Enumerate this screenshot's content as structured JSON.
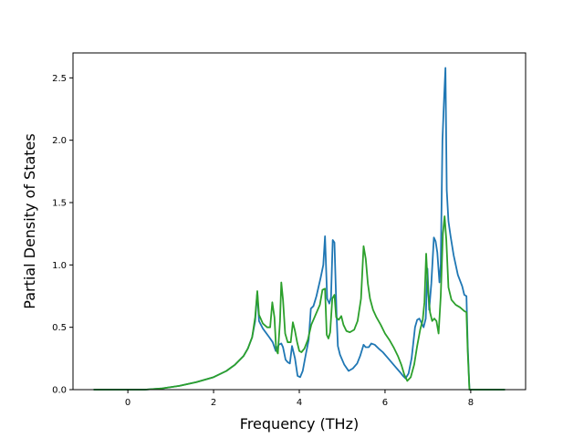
{
  "chart_data": {
    "type": "line",
    "xlabel": "Frequency (THz)",
    "ylabel": "Partial Density of States",
    "xlim": [
      -1.28,
      9.28
    ],
    "ylim": [
      0,
      2.7
    ],
    "xticks": [
      0,
      2,
      4,
      6,
      8
    ],
    "yticks": [
      0.0,
      0.5,
      1.0,
      1.5,
      2.0,
      2.5
    ],
    "xtick_labels": [
      "0",
      "2",
      "4",
      "6",
      "8"
    ],
    "ytick_labels": [
      "0.0",
      "0.5",
      "1.0",
      "1.5",
      "2.0",
      "2.5"
    ],
    "grid": false,
    "legend": "none",
    "series": [
      {
        "color": "#1f77b4",
        "points": [
          [
            -0.8,
            0
          ],
          [
            0.0,
            0
          ],
          [
            0.4,
            0.0
          ],
          [
            0.8,
            0.01
          ],
          [
            1.2,
            0.03
          ],
          [
            1.6,
            0.06
          ],
          [
            2.0,
            0.1
          ],
          [
            2.3,
            0.15
          ],
          [
            2.5,
            0.2
          ],
          [
            2.7,
            0.27
          ],
          [
            2.8,
            0.33
          ],
          [
            2.9,
            0.42
          ],
          [
            2.97,
            0.55
          ],
          [
            3.02,
            0.78
          ],
          [
            3.06,
            0.55
          ],
          [
            3.15,
            0.49
          ],
          [
            3.3,
            0.42
          ],
          [
            3.38,
            0.38
          ],
          [
            3.45,
            0.31
          ],
          [
            3.52,
            0.36
          ],
          [
            3.58,
            0.37
          ],
          [
            3.62,
            0.34
          ],
          [
            3.68,
            0.24
          ],
          [
            3.73,
            0.22
          ],
          [
            3.78,
            0.21
          ],
          [
            3.83,
            0.35
          ],
          [
            3.9,
            0.25
          ],
          [
            3.96,
            0.11
          ],
          [
            4.02,
            0.1
          ],
          [
            4.08,
            0.15
          ],
          [
            4.15,
            0.28
          ],
          [
            4.22,
            0.4
          ],
          [
            4.27,
            0.65
          ],
          [
            4.33,
            0.67
          ],
          [
            4.4,
            0.75
          ],
          [
            4.5,
            0.9
          ],
          [
            4.56,
            1.0
          ],
          [
            4.6,
            1.23
          ],
          [
            4.65,
            0.73
          ],
          [
            4.7,
            0.69
          ],
          [
            4.74,
            0.74
          ],
          [
            4.78,
            1.2
          ],
          [
            4.82,
            1.18
          ],
          [
            4.87,
            0.6
          ],
          [
            4.9,
            0.35
          ],
          [
            4.95,
            0.28
          ],
          [
            5.05,
            0.2
          ],
          [
            5.15,
            0.15
          ],
          [
            5.25,
            0.17
          ],
          [
            5.35,
            0.21
          ],
          [
            5.42,
            0.27
          ],
          [
            5.5,
            0.36
          ],
          [
            5.55,
            0.34
          ],
          [
            5.62,
            0.34
          ],
          [
            5.68,
            0.37
          ],
          [
            5.76,
            0.36
          ],
          [
            5.85,
            0.33
          ],
          [
            5.95,
            0.3
          ],
          [
            6.05,
            0.26
          ],
          [
            6.15,
            0.22
          ],
          [
            6.25,
            0.18
          ],
          [
            6.35,
            0.14
          ],
          [
            6.42,
            0.11
          ],
          [
            6.48,
            0.09
          ],
          [
            6.55,
            0.13
          ],
          [
            6.62,
            0.25
          ],
          [
            6.7,
            0.5
          ],
          [
            6.75,
            0.56
          ],
          [
            6.8,
            0.57
          ],
          [
            6.86,
            0.53
          ],
          [
            6.9,
            0.5
          ],
          [
            6.95,
            0.57
          ],
          [
            6.99,
            0.97
          ],
          [
            7.03,
            0.64
          ],
          [
            7.08,
            0.85
          ],
          [
            7.14,
            1.22
          ],
          [
            7.18,
            1.19
          ],
          [
            7.22,
            1.1
          ],
          [
            7.27,
            0.86
          ],
          [
            7.3,
            1.0
          ],
          [
            7.34,
            2.0
          ],
          [
            7.38,
            2.35
          ],
          [
            7.41,
            2.58
          ],
          [
            7.44,
            1.6
          ],
          [
            7.48,
            1.35
          ],
          [
            7.53,
            1.23
          ],
          [
            7.6,
            1.08
          ],
          [
            7.7,
            0.92
          ],
          [
            7.8,
            0.83
          ],
          [
            7.85,
            0.76
          ],
          [
            7.9,
            0.75
          ],
          [
            7.93,
            0.35
          ],
          [
            7.97,
            0.0
          ],
          [
            8.1,
            0
          ],
          [
            8.8,
            0
          ]
        ]
      },
      {
        "color": "#2ca02c",
        "points": [
          [
            -0.8,
            0
          ],
          [
            0.0,
            0
          ],
          [
            0.4,
            0.0
          ],
          [
            0.8,
            0.01
          ],
          [
            1.2,
            0.03
          ],
          [
            1.6,
            0.06
          ],
          [
            2.0,
            0.1
          ],
          [
            2.3,
            0.15
          ],
          [
            2.5,
            0.2
          ],
          [
            2.7,
            0.27
          ],
          [
            2.8,
            0.33
          ],
          [
            2.9,
            0.42
          ],
          [
            2.97,
            0.58
          ],
          [
            3.02,
            0.79
          ],
          [
            3.06,
            0.6
          ],
          [
            3.15,
            0.53
          ],
          [
            3.25,
            0.5
          ],
          [
            3.32,
            0.5
          ],
          [
            3.37,
            0.7
          ],
          [
            3.42,
            0.58
          ],
          [
            3.46,
            0.32
          ],
          [
            3.5,
            0.29
          ],
          [
            3.55,
            0.55
          ],
          [
            3.58,
            0.86
          ],
          [
            3.62,
            0.72
          ],
          [
            3.67,
            0.45
          ],
          [
            3.73,
            0.38
          ],
          [
            3.8,
            0.38
          ],
          [
            3.85,
            0.54
          ],
          [
            3.9,
            0.47
          ],
          [
            3.95,
            0.38
          ],
          [
            4.0,
            0.31
          ],
          [
            4.05,
            0.3
          ],
          [
            4.12,
            0.33
          ],
          [
            4.2,
            0.4
          ],
          [
            4.28,
            0.52
          ],
          [
            4.38,
            0.6
          ],
          [
            4.48,
            0.68
          ],
          [
            4.54,
            0.8
          ],
          [
            4.6,
            0.81
          ],
          [
            4.64,
            0.44
          ],
          [
            4.68,
            0.41
          ],
          [
            4.72,
            0.46
          ],
          [
            4.77,
            0.73
          ],
          [
            4.82,
            0.76
          ],
          [
            4.86,
            0.58
          ],
          [
            4.92,
            0.56
          ],
          [
            4.98,
            0.59
          ],
          [
            5.03,
            0.52
          ],
          [
            5.1,
            0.47
          ],
          [
            5.18,
            0.46
          ],
          [
            5.28,
            0.48
          ],
          [
            5.36,
            0.55
          ],
          [
            5.44,
            0.73
          ],
          [
            5.5,
            1.15
          ],
          [
            5.55,
            1.05
          ],
          [
            5.6,
            0.85
          ],
          [
            5.65,
            0.73
          ],
          [
            5.72,
            0.64
          ],
          [
            5.8,
            0.58
          ],
          [
            5.9,
            0.52
          ],
          [
            6.0,
            0.45
          ],
          [
            6.1,
            0.4
          ],
          [
            6.2,
            0.34
          ],
          [
            6.3,
            0.27
          ],
          [
            6.38,
            0.2
          ],
          [
            6.45,
            0.12
          ],
          [
            6.52,
            0.07
          ],
          [
            6.6,
            0.1
          ],
          [
            6.68,
            0.2
          ],
          [
            6.75,
            0.35
          ],
          [
            6.82,
            0.48
          ],
          [
            6.88,
            0.56
          ],
          [
            6.92,
            0.7
          ],
          [
            6.96,
            1.09
          ],
          [
            7.0,
            0.82
          ],
          [
            7.05,
            0.62
          ],
          [
            7.1,
            0.55
          ],
          [
            7.15,
            0.57
          ],
          [
            7.2,
            0.55
          ],
          [
            7.25,
            0.45
          ],
          [
            7.3,
            0.75
          ],
          [
            7.35,
            1.25
          ],
          [
            7.39,
            1.39
          ],
          [
            7.43,
            1.2
          ],
          [
            7.48,
            0.82
          ],
          [
            7.55,
            0.72
          ],
          [
            7.65,
            0.68
          ],
          [
            7.75,
            0.66
          ],
          [
            7.85,
            0.63
          ],
          [
            7.9,
            0.62
          ],
          [
            7.93,
            0.3
          ],
          [
            7.97,
            0.0
          ],
          [
            8.1,
            0
          ],
          [
            8.8,
            0
          ]
        ]
      }
    ]
  }
}
